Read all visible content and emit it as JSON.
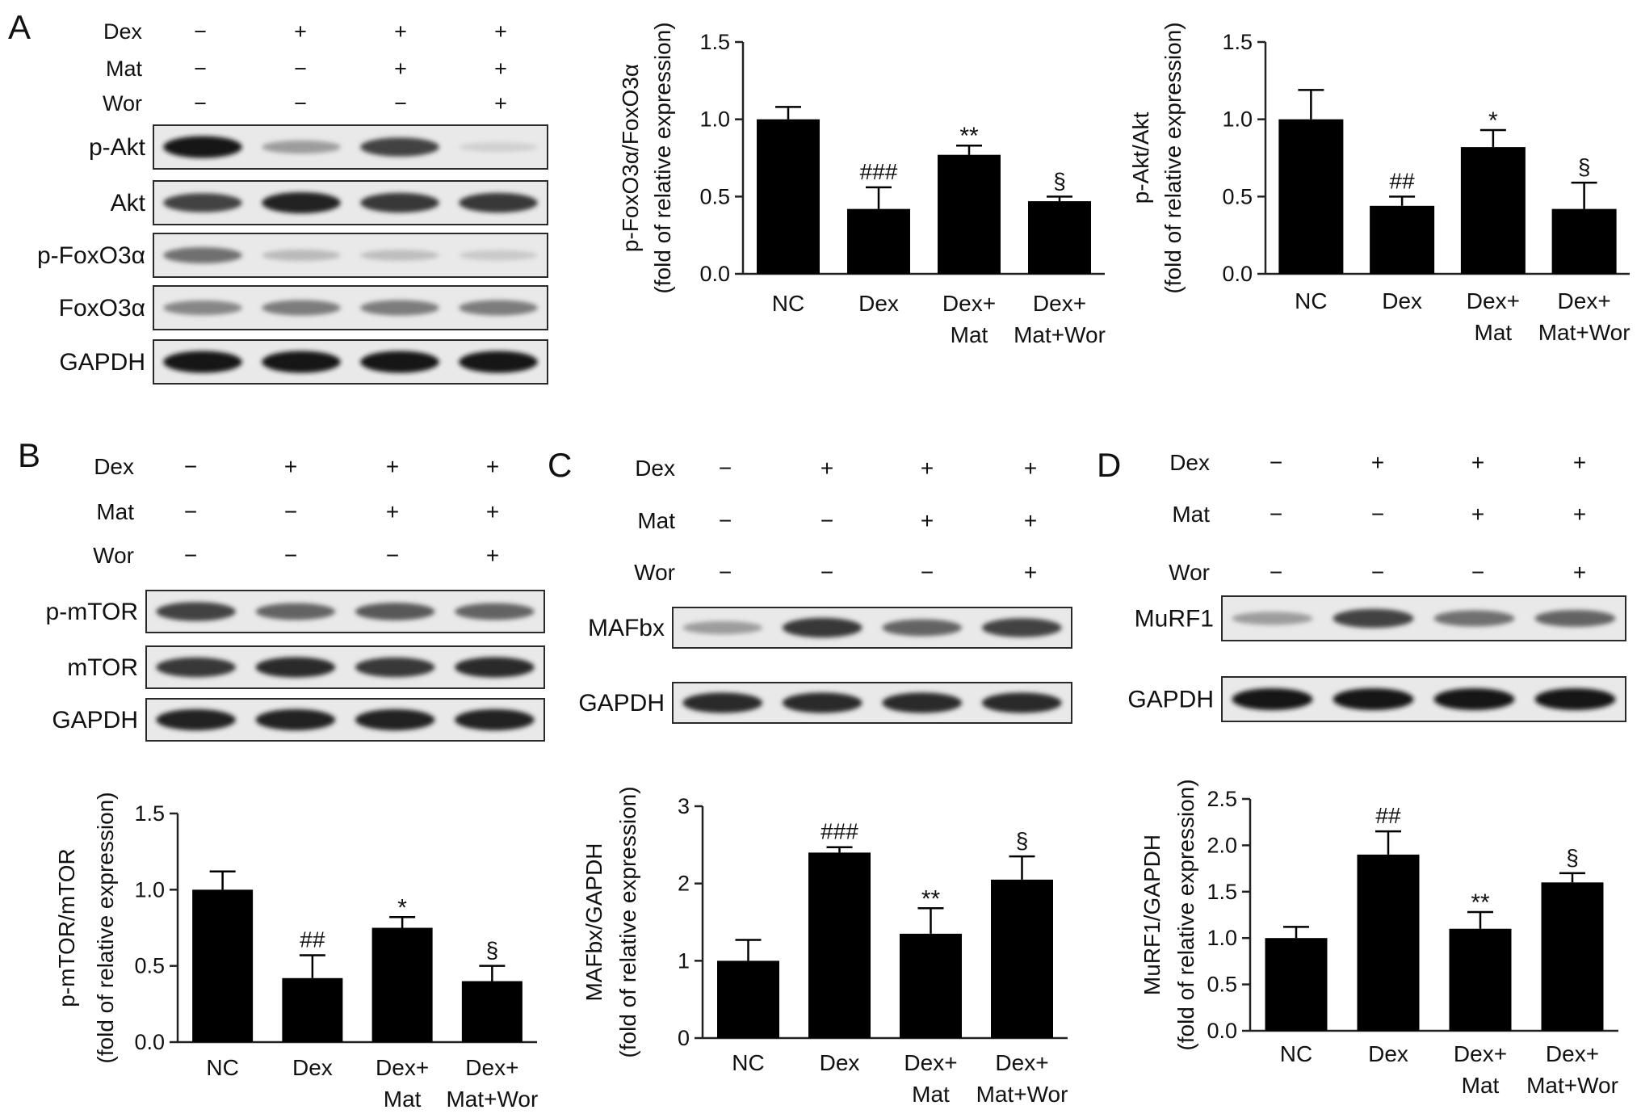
{
  "panels": {
    "A": {
      "letter": "A",
      "blot": {
        "conditions": [
          {
            "name": "Dex",
            "signs": [
              "−",
              "+",
              "+",
              "+"
            ]
          },
          {
            "name": "Mat",
            "signs": [
              "−",
              "−",
              "+",
              "+"
            ]
          },
          {
            "name": "Wor",
            "signs": [
              "−",
              "−",
              "−",
              "+"
            ]
          }
        ],
        "rows": [
          {
            "label": "p-Akt",
            "intensity": [
              0.95,
              0.35,
              0.75,
              0.12
            ]
          },
          {
            "label": "Akt",
            "intensity": [
              0.75,
              0.9,
              0.8,
              0.8
            ]
          },
          {
            "label": "p-FoxO3α",
            "intensity": [
              0.55,
              0.22,
              0.2,
              0.15
            ]
          },
          {
            "label": "FoxO3α",
            "intensity": [
              0.45,
              0.5,
              0.5,
              0.5
            ]
          },
          {
            "label": "GAPDH",
            "intensity": [
              0.95,
              0.95,
              0.95,
              0.95
            ]
          }
        ]
      }
    },
    "B": {
      "letter": "B",
      "blot": {
        "conditions": [
          {
            "name": "Dex",
            "signs": [
              "−",
              "+",
              "+",
              "+"
            ]
          },
          {
            "name": "Mat",
            "signs": [
              "−",
              "−",
              "+",
              "+"
            ]
          },
          {
            "name": "Wor",
            "signs": [
              "−",
              "−",
              "−",
              "+"
            ]
          }
        ],
        "rows": [
          {
            "label": "p-mTOR",
            "intensity": [
              0.75,
              0.6,
              0.65,
              0.6
            ]
          },
          {
            "label": "mTOR",
            "intensity": [
              0.8,
              0.85,
              0.8,
              0.85
            ]
          },
          {
            "label": "GAPDH",
            "intensity": [
              0.9,
              0.9,
              0.9,
              0.9
            ]
          }
        ]
      }
    },
    "C": {
      "letter": "C",
      "blot": {
        "conditions": [
          {
            "name": "Dex",
            "signs": [
              "−",
              "+",
              "+",
              "+"
            ]
          },
          {
            "name": "Mat",
            "signs": [
              "−",
              "−",
              "+",
              "+"
            ]
          },
          {
            "name": "Wor",
            "signs": [
              "−",
              "−",
              "−",
              "+"
            ]
          }
        ],
        "rows": [
          {
            "label": "MAFbx",
            "intensity": [
              0.35,
              0.8,
              0.6,
              0.75
            ]
          },
          {
            "label": "GAPDH",
            "intensity": [
              0.85,
              0.85,
              0.85,
              0.85
            ]
          }
        ]
      }
    },
    "D": {
      "letter": "D",
      "blot": {
        "conditions": [
          {
            "name": "Dex",
            "signs": [
              "−",
              "+",
              "+",
              "+"
            ]
          },
          {
            "name": "Mat",
            "signs": [
              "−",
              "−",
              "+",
              "+"
            ]
          },
          {
            "name": "Wor",
            "signs": [
              "−",
              "−",
              "−",
              "+"
            ]
          }
        ],
        "rows": [
          {
            "label": "MuRF1",
            "intensity": [
              0.35,
              0.75,
              0.55,
              0.6
            ]
          },
          {
            "label": "GAPDH",
            "intensity": [
              0.95,
              0.95,
              0.95,
              0.95
            ]
          }
        ]
      }
    }
  },
  "chart_data": [
    {
      "panel": "A",
      "type": "bar",
      "categories": [
        [
          "NC"
        ],
        [
          "Dex"
        ],
        [
          "Dex+",
          "Mat"
        ],
        [
          "Dex+",
          "Mat+Wor"
        ]
      ],
      "values": [
        1.0,
        0.42,
        0.77,
        0.47
      ],
      "errors": [
        0.08,
        0.14,
        0.06,
        0.03
      ],
      "annotations": [
        "",
        "###",
        "**",
        "§"
      ],
      "ylabel": [
        "p-FoxO3α/FoxO3α",
        "(fold of relative expression)"
      ],
      "xlabel": "",
      "ylim": [
        0,
        1.5
      ],
      "yticks": [
        "0.0",
        "0.5",
        "1.0",
        "1.5"
      ],
      "bar_color": "#000000"
    },
    {
      "panel": "A",
      "type": "bar",
      "categories": [
        [
          "NC"
        ],
        [
          "Dex"
        ],
        [
          "Dex+",
          "Mat"
        ],
        [
          "Dex+",
          "Mat+Wor"
        ]
      ],
      "values": [
        1.0,
        0.44,
        0.82,
        0.42
      ],
      "errors": [
        0.19,
        0.06,
        0.11,
        0.17
      ],
      "annotations": [
        "",
        "##",
        "*",
        "§"
      ],
      "ylabel": [
        "p-Akt/Akt",
        "(fold of relative expression)"
      ],
      "xlabel": "",
      "ylim": [
        0,
        1.5
      ],
      "yticks": [
        "0.0",
        "0.5",
        "1.0",
        "1.5"
      ],
      "bar_color": "#000000"
    },
    {
      "panel": "B",
      "type": "bar",
      "categories": [
        [
          "NC"
        ],
        [
          "Dex"
        ],
        [
          "Dex+",
          "Mat"
        ],
        [
          "Dex+",
          "Mat+Wor"
        ]
      ],
      "values": [
        1.0,
        0.42,
        0.75,
        0.4
      ],
      "errors": [
        0.12,
        0.15,
        0.07,
        0.1
      ],
      "annotations": [
        "",
        "##",
        "*",
        "§"
      ],
      "ylabel": [
        "p-mTOR/mTOR",
        "(fold of relative expression)"
      ],
      "xlabel": "",
      "ylim": [
        0,
        1.5
      ],
      "yticks": [
        "0.0",
        "0.5",
        "1.0",
        "1.5"
      ],
      "bar_color": "#000000"
    },
    {
      "panel": "C",
      "type": "bar",
      "categories": [
        [
          "NC"
        ],
        [
          "Dex"
        ],
        [
          "Dex+",
          "Mat"
        ],
        [
          "Dex+",
          "Mat+Wor"
        ]
      ],
      "values": [
        1.0,
        2.4,
        1.35,
        2.05
      ],
      "errors": [
        0.27,
        0.07,
        0.33,
        0.3
      ],
      "annotations": [
        "",
        "###",
        "**",
        "§"
      ],
      "ylabel": [
        "MAFbx/GAPDH",
        "(fold of relative expression)"
      ],
      "xlabel": "",
      "ylim": [
        0,
        3
      ],
      "yticks": [
        "0",
        "1",
        "2",
        "3"
      ],
      "bar_color": "#000000"
    },
    {
      "panel": "D",
      "type": "bar",
      "categories": [
        [
          "NC"
        ],
        [
          "Dex"
        ],
        [
          "Dex+",
          "Mat"
        ],
        [
          "Dex+",
          "Mat+Wor"
        ]
      ],
      "values": [
        1.0,
        1.9,
        1.1,
        1.6
      ],
      "errors": [
        0.12,
        0.25,
        0.18,
        0.1
      ],
      "annotations": [
        "",
        "##",
        "**",
        "§"
      ],
      "ylabel": [
        "MuRF1/GAPDH",
        "(fold of relative expression)"
      ],
      "xlabel": "",
      "ylim": [
        0,
        2.5
      ],
      "yticks": [
        "0.0",
        "0.5",
        "1.0",
        "1.5",
        "2.0",
        "2.5"
      ],
      "bar_color": "#000000"
    }
  ]
}
